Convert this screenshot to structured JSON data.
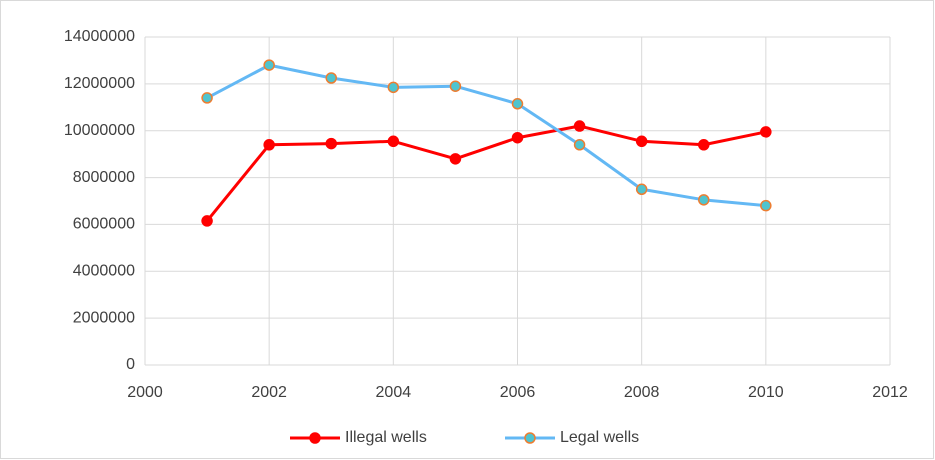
{
  "chart_data": {
    "type": "line",
    "x": [
      2001,
      2002,
      2003,
      2004,
      2005,
      2006,
      2007,
      2008,
      2009,
      2010
    ],
    "series": [
      {
        "name": "Illegal wells",
        "color": "#ff0000",
        "marker_color": "#ff0000",
        "marker_edge_color": "#ff0000",
        "values": [
          6150000,
          9400000,
          9450000,
          9550000,
          8800000,
          9700000,
          10200000,
          9550000,
          9400000,
          9950000
        ]
      },
      {
        "name": "Legal wells",
        "color": "#63b8f4",
        "marker_color": "#4fc4cf",
        "marker_edge_color": "#ed7d31",
        "values": [
          11400000,
          12800000,
          12250000,
          11850000,
          11900000,
          11150000,
          9400000,
          7500000,
          7050000,
          6800000
        ]
      }
    ],
    "xlim": [
      2000,
      2012
    ],
    "xticks": [
      2000,
      2002,
      2004,
      2006,
      2008,
      2010,
      2012
    ],
    "ylim": [
      0,
      14000000
    ],
    "yticks": [
      0,
      2000000,
      4000000,
      6000000,
      8000000,
      10000000,
      12000000,
      14000000
    ],
    "grid": true,
    "legend": "bottom"
  }
}
